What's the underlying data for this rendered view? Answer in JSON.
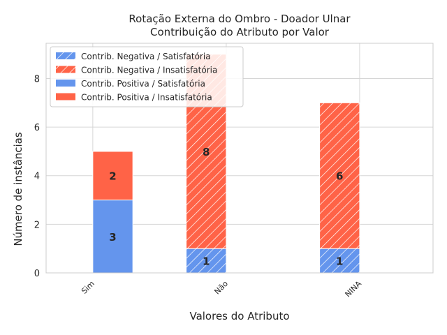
{
  "chart_data": {
    "type": "bar",
    "stacked": true,
    "title_lines": [
      "Rotação Externa do Ombro - Doador Ulnar",
      "Contribuição do Atributo por Valor"
    ],
    "xlabel": "Valores do Atributo",
    "ylabel": "Número de instâncias",
    "categories": [
      "Sim",
      "Não",
      "NINA"
    ],
    "ylim": [
      0,
      9.45
    ],
    "yticks": [
      0,
      2,
      4,
      6,
      8
    ],
    "grid": true,
    "legend_position": "top-left",
    "colors": {
      "satisfatoria": "#6495ed",
      "insatisfatoria": "#ff6347"
    },
    "groups": [
      {
        "name": "Contribuição Negativa",
        "hatched": true,
        "series": [
          {
            "name": "Contrib. Negativa / Satisfatória",
            "color": "#6495ed",
            "values": [
              0,
              1,
              1
            ]
          },
          {
            "name": "Contrib. Negativa / Insatisfatória",
            "color": "#ff6347",
            "values": [
              0,
              8,
              6
            ]
          }
        ]
      },
      {
        "name": "Contribuição Positiva",
        "hatched": false,
        "series": [
          {
            "name": "Contrib. Positiva / Satisfatória",
            "color": "#6495ed",
            "values": [
              3,
              0,
              0
            ]
          },
          {
            "name": "Contrib. Positiva / Insatisfatória",
            "color": "#ff6347",
            "values": [
              2,
              0,
              0
            ]
          }
        ]
      }
    ]
  }
}
